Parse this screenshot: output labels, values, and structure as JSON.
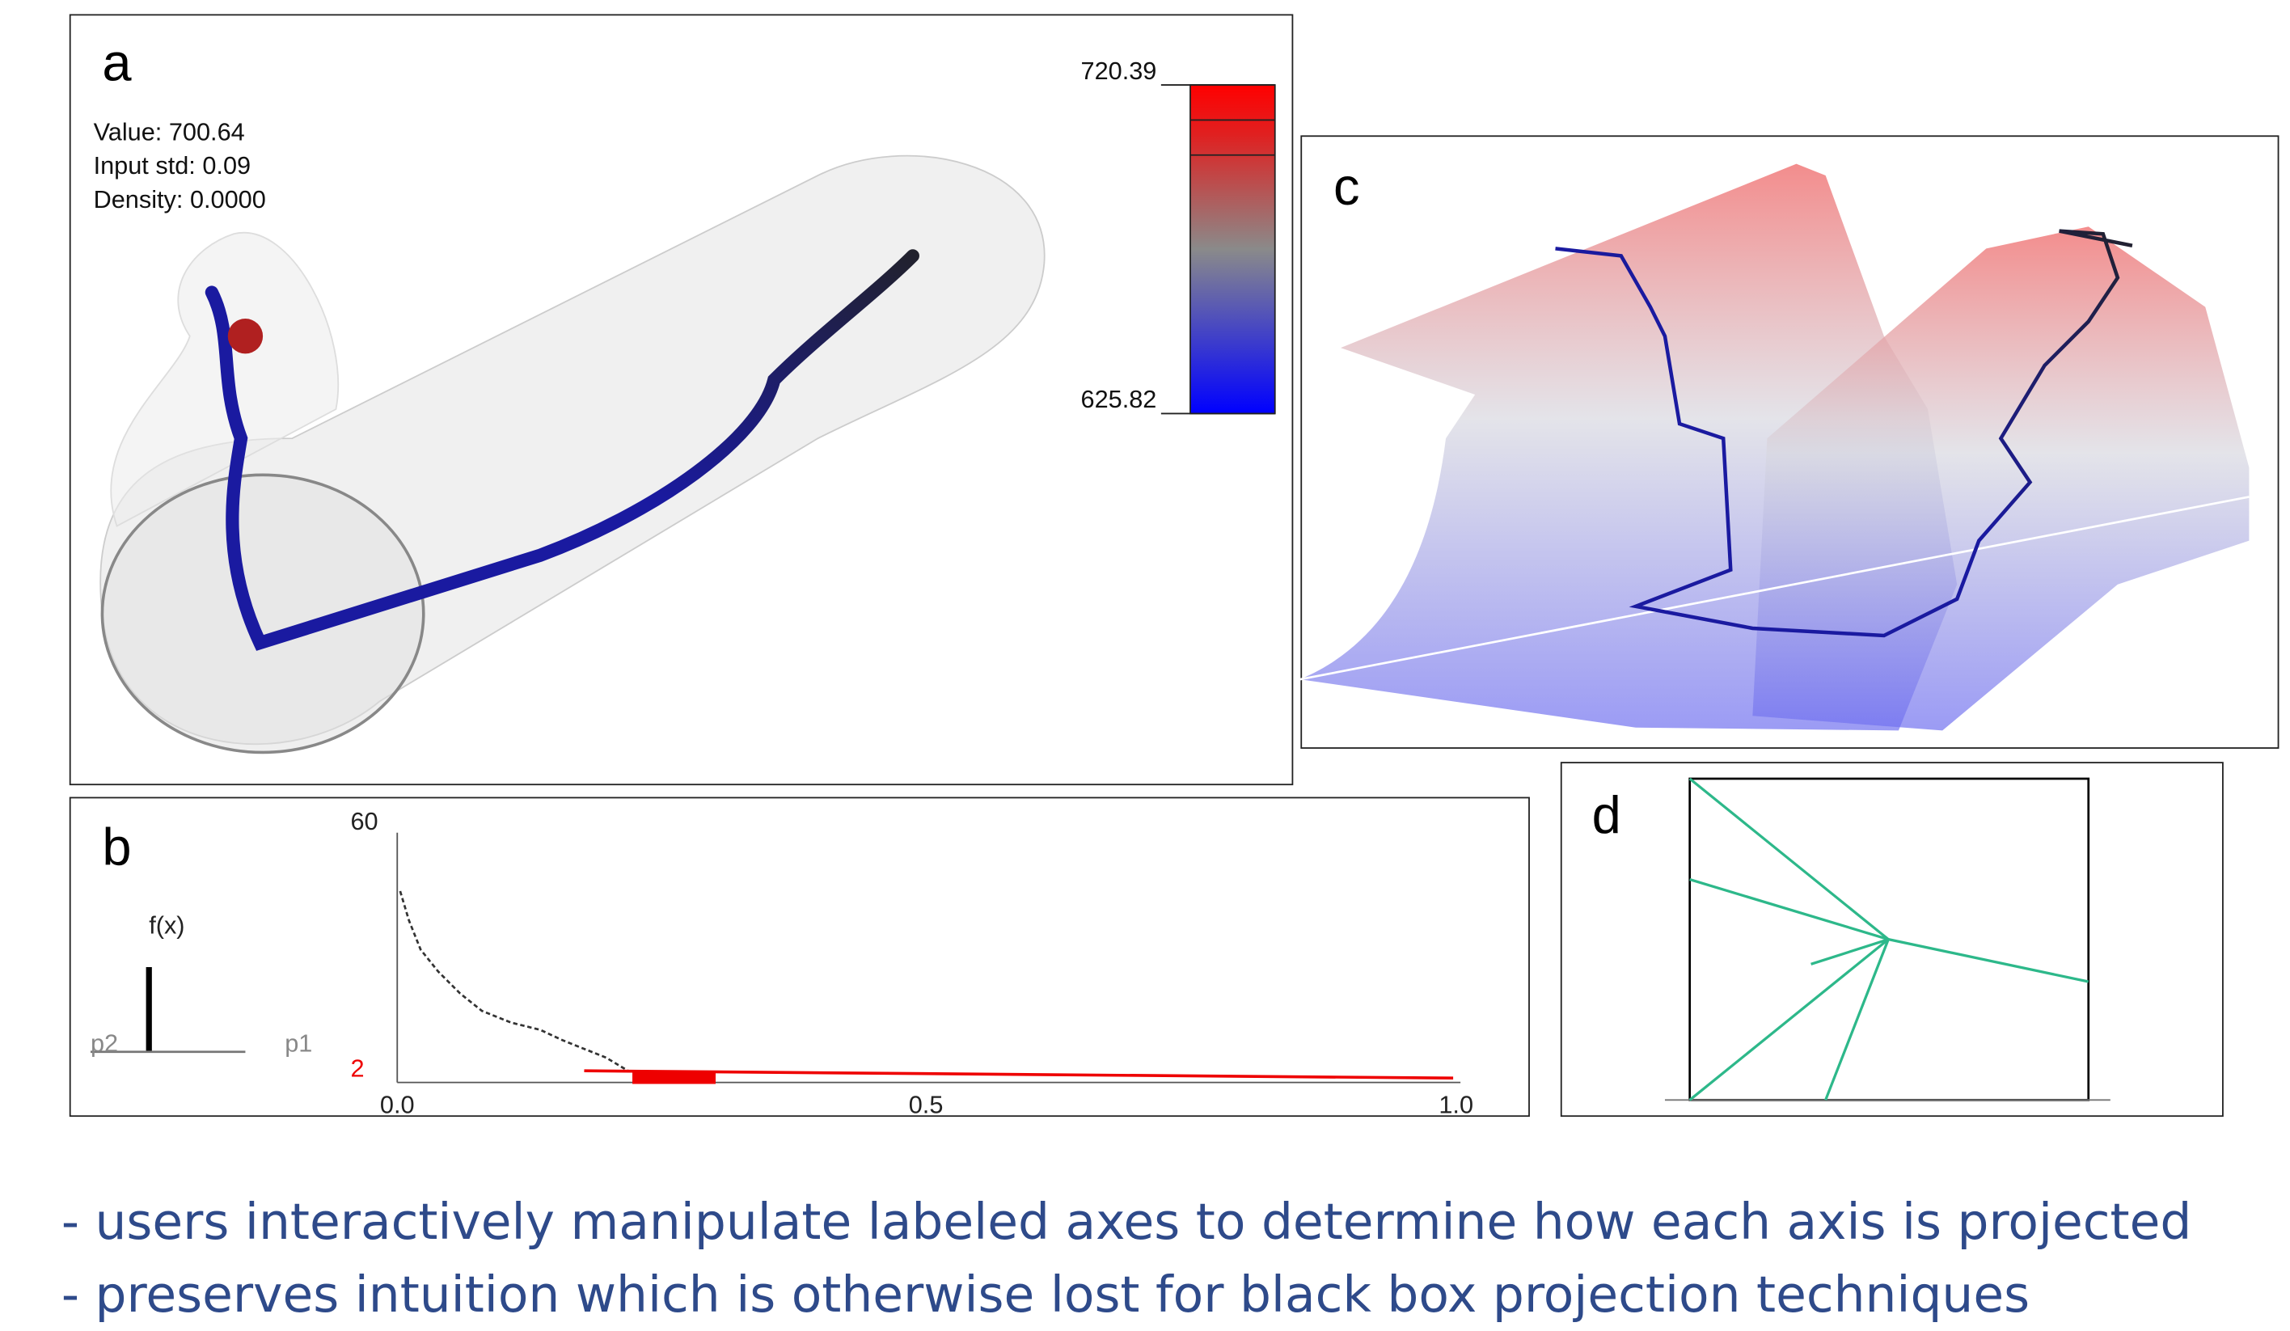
{
  "panel_a": {
    "label": "a",
    "info": [
      "Value: 700.64",
      "Input std: 0.09",
      "Density: 0.0000"
    ],
    "colorbar_max": "720.39",
    "colorbar_min": "625.82"
  },
  "panel_b": {
    "label": "b",
    "function_label": "f(x)",
    "param_left": "p2",
    "param_right": "p1",
    "y_top": "60",
    "y_marker": "2",
    "x_ticks": [
      "0.0",
      "0.5",
      "1.0"
    ]
  },
  "panel_c": {
    "label": "c"
  },
  "panel_d": {
    "label": "d"
  },
  "bullets": [
    "- users interactively manipulate labeled axes to determine how each axis is projected",
    "- preserves intuition which is otherwise lost for black box projection techniques"
  ]
}
